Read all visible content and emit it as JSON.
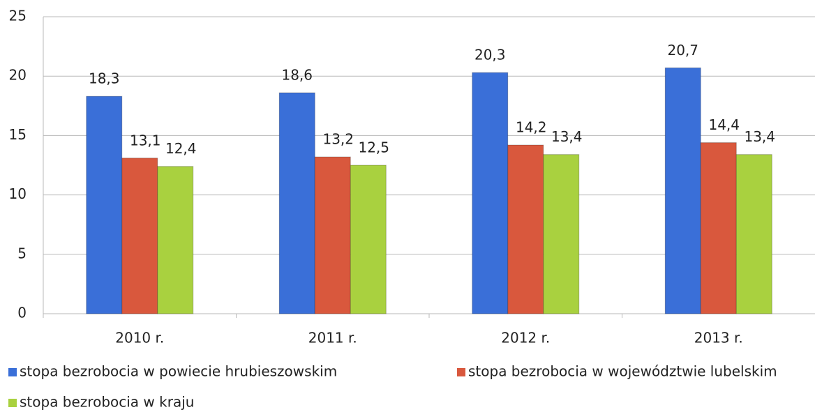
{
  "chart_data": {
    "type": "bar",
    "categories": [
      "2010 r.",
      "2011 r.",
      "2012 r.",
      "2013 r."
    ],
    "series": [
      {
        "name": "stopa bezrobocia w powiecie hrubieszowskim",
        "color": "#3a6fd8",
        "values": [
          18.3,
          18.6,
          20.3,
          20.7
        ],
        "value_labels": [
          "18,3",
          "18,6",
          "20,3",
          "20,7"
        ]
      },
      {
        "name": "stopa bezrobocia w województwie lubelskim",
        "color": "#d9583d",
        "values": [
          13.1,
          13.2,
          14.2,
          14.4
        ],
        "value_labels": [
          "13,1",
          "13,2",
          "14,2",
          "14,4"
        ]
      },
      {
        "name": "stopa bezrobocia w kraju",
        "color": "#a9d13f",
        "values": [
          12.4,
          12.5,
          13.4,
          13.4
        ],
        "value_labels": [
          "12,4",
          "12,5",
          "13,4",
          "13,4"
        ]
      }
    ],
    "ylim": [
      0,
      25
    ],
    "yticks": [
      0,
      5,
      10,
      15,
      20,
      25
    ],
    "grid": true
  }
}
